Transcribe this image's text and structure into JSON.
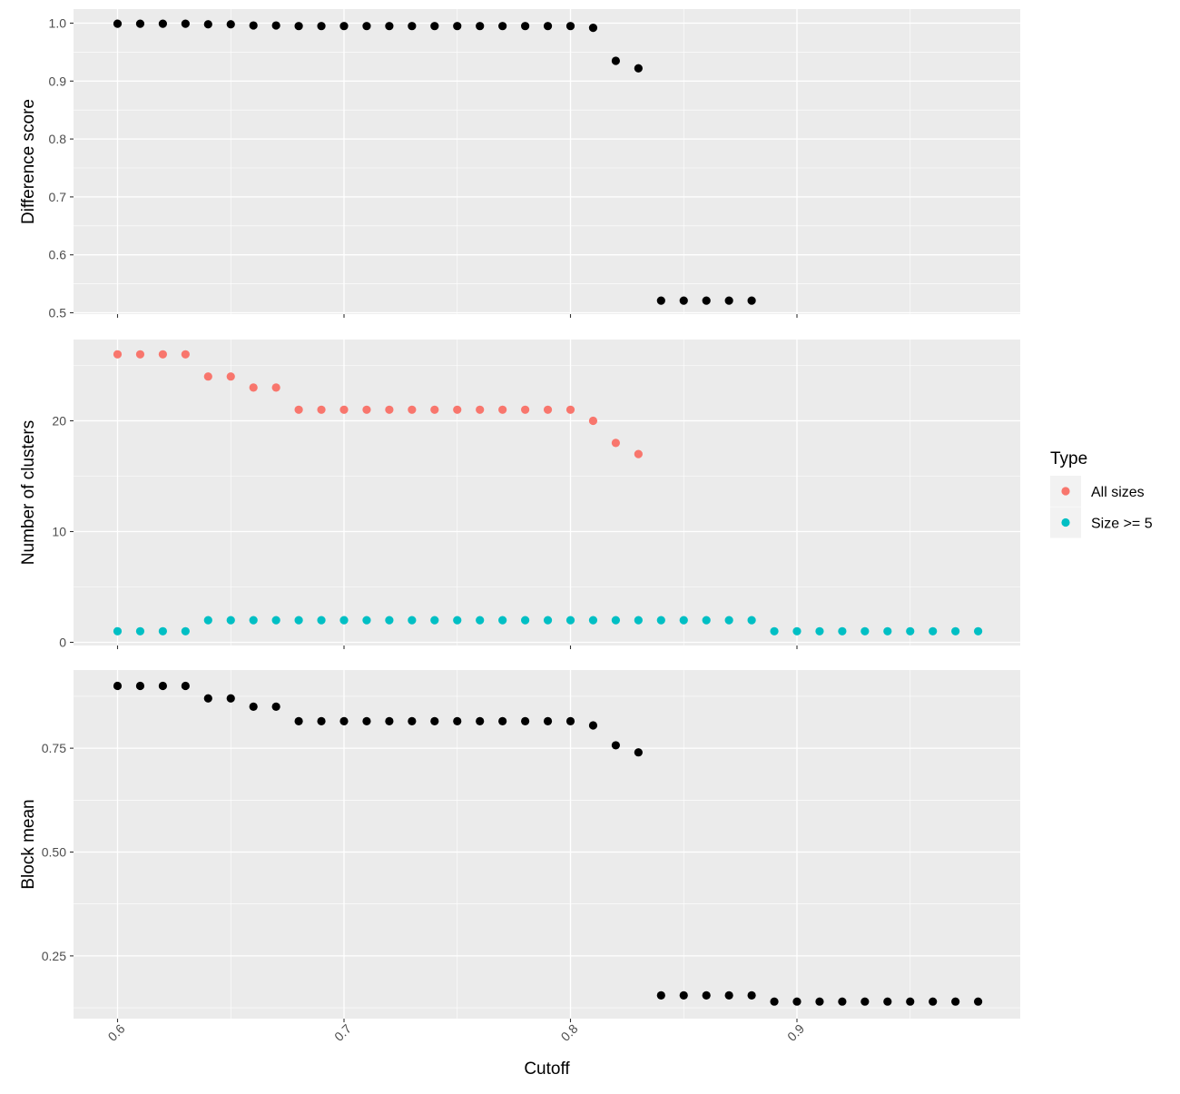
{
  "chart_data": {
    "type": "scatter",
    "xlabel": "Cutoff",
    "x_ticks": [
      "0.6",
      "0.7",
      "0.8",
      "0.9"
    ],
    "xlim": [
      0.5815,
      0.9985
    ],
    "grid": true,
    "legend": {
      "title": "Type",
      "position": "right",
      "entries": [
        {
          "label": "All sizes",
          "color": "#F8766D"
        },
        {
          "label": "Size >= 5",
          "color": "#00BFC4"
        }
      ]
    },
    "panels": [
      {
        "ylabel": "Difference score",
        "ylim": [
          0.5,
          1.0
        ],
        "y_ticks": [
          "0.5",
          "0.6",
          "0.7",
          "0.8",
          "0.9",
          "1.0"
        ],
        "series": [
          {
            "color": "#000000",
            "x": [
              0.6,
              0.61,
              0.62,
              0.63,
              0.64,
              0.65,
              0.66,
              0.67,
              0.68,
              0.69,
              0.7,
              0.71,
              0.72,
              0.73,
              0.74,
              0.75,
              0.76,
              0.77,
              0.78,
              0.79,
              0.8,
              0.81,
              0.82,
              0.83,
              0.84,
              0.85,
              0.86,
              0.87,
              0.88
            ],
            "y": [
              0.999,
              0.999,
              0.999,
              0.999,
              0.998,
              0.998,
              0.996,
              0.996,
              0.995,
              0.995,
              0.995,
              0.995,
              0.995,
              0.995,
              0.995,
              0.995,
              0.995,
              0.995,
              0.995,
              0.995,
              0.995,
              0.992,
              0.935,
              0.922,
              0.521,
              0.521,
              0.521,
              0.521,
              0.521
            ]
          }
        ]
      },
      {
        "ylabel": "Number of clusters",
        "ylim": [
          0,
          26
        ],
        "y_ticks": [
          "0",
          "10",
          "20"
        ],
        "series": [
          {
            "name": "All sizes",
            "color": "#F8766D",
            "x": [
              0.6,
              0.61,
              0.62,
              0.63,
              0.64,
              0.65,
              0.66,
              0.67,
              0.68,
              0.69,
              0.7,
              0.71,
              0.72,
              0.73,
              0.74,
              0.75,
              0.76,
              0.77,
              0.78,
              0.79,
              0.8,
              0.81,
              0.82,
              0.83
            ],
            "y": [
              26,
              26,
              26,
              26,
              24,
              24,
              23,
              23,
              21,
              21,
              21,
              21,
              21,
              21,
              21,
              21,
              21,
              21,
              21,
              21,
              21,
              20,
              18,
              17
            ]
          },
          {
            "name": "Size >= 5",
            "color": "#00BFC4",
            "x": [
              0.6,
              0.61,
              0.62,
              0.63,
              0.64,
              0.65,
              0.66,
              0.67,
              0.68,
              0.69,
              0.7,
              0.71,
              0.72,
              0.73,
              0.74,
              0.75,
              0.76,
              0.77,
              0.78,
              0.79,
              0.8,
              0.81,
              0.82,
              0.83,
              0.84,
              0.85,
              0.86,
              0.87,
              0.88,
              0.89,
              0.9,
              0.91,
              0.92,
              0.93,
              0.94,
              0.95,
              0.96,
              0.97,
              0.98
            ],
            "y": [
              1,
              1,
              1,
              1,
              2,
              2,
              2,
              2,
              2,
              2,
              2,
              2,
              2,
              2,
              2,
              2,
              2,
              2,
              2,
              2,
              2,
              2,
              2,
              2,
              2,
              2,
              2,
              2,
              2,
              1,
              1,
              1,
              1,
              1,
              1,
              1,
              1,
              1,
              1
            ]
          }
        ]
      },
      {
        "ylabel": "Block mean",
        "ylim": [
          0.135,
          0.9
        ],
        "y_ticks": [
          "0.25",
          "0.50",
          "0.75"
        ],
        "series": [
          {
            "color": "#000000",
            "x": [
              0.6,
              0.61,
              0.62,
              0.63,
              0.64,
              0.65,
              0.66,
              0.67,
              0.68,
              0.69,
              0.7,
              0.71,
              0.72,
              0.73,
              0.74,
              0.75,
              0.76,
              0.77,
              0.78,
              0.79,
              0.8,
              0.81,
              0.82,
              0.83,
              0.84,
              0.85,
              0.86,
              0.87,
              0.88,
              0.89,
              0.9,
              0.91,
              0.92,
              0.93,
              0.94,
              0.95,
              0.96,
              0.97,
              0.98
            ],
            "y": [
              0.9,
              0.9,
              0.9,
              0.9,
              0.87,
              0.87,
              0.85,
              0.85,
              0.815,
              0.815,
              0.815,
              0.815,
              0.815,
              0.815,
              0.815,
              0.815,
              0.815,
              0.815,
              0.815,
              0.815,
              0.815,
              0.805,
              0.757,
              0.74,
              0.155,
              0.155,
              0.155,
              0.155,
              0.155,
              0.14,
              0.14,
              0.14,
              0.14,
              0.14,
              0.14,
              0.14,
              0.14,
              0.14,
              0.14
            ]
          }
        ]
      }
    ]
  }
}
